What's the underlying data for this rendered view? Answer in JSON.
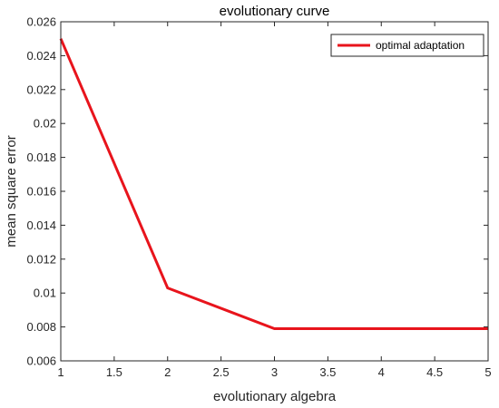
{
  "chart_data": {
    "type": "line",
    "title": "evolutionary curve",
    "xlabel": "evolutionary algebra",
    "ylabel": "mean square error",
    "xlim": [
      1,
      5
    ],
    "ylim": [
      0.006,
      0.026
    ],
    "x_ticks": [
      "1",
      "1.5",
      "2",
      "2.5",
      "3",
      "3.5",
      "4",
      "4.5",
      "5"
    ],
    "y_ticks": [
      "0.006",
      "0.008",
      "0.01",
      "0.012",
      "0.014",
      "0.016",
      "0.018",
      "0.02",
      "0.022",
      "0.024",
      "0.026"
    ],
    "grid": false,
    "legend_position": "top-right",
    "series": [
      {
        "name": "optimal adaptation",
        "color": "#e8141c",
        "x": [
          1,
          2,
          3,
          4,
          5
        ],
        "y": [
          0.025,
          0.0103,
          0.0079,
          0.0079,
          0.0079
        ]
      }
    ]
  }
}
